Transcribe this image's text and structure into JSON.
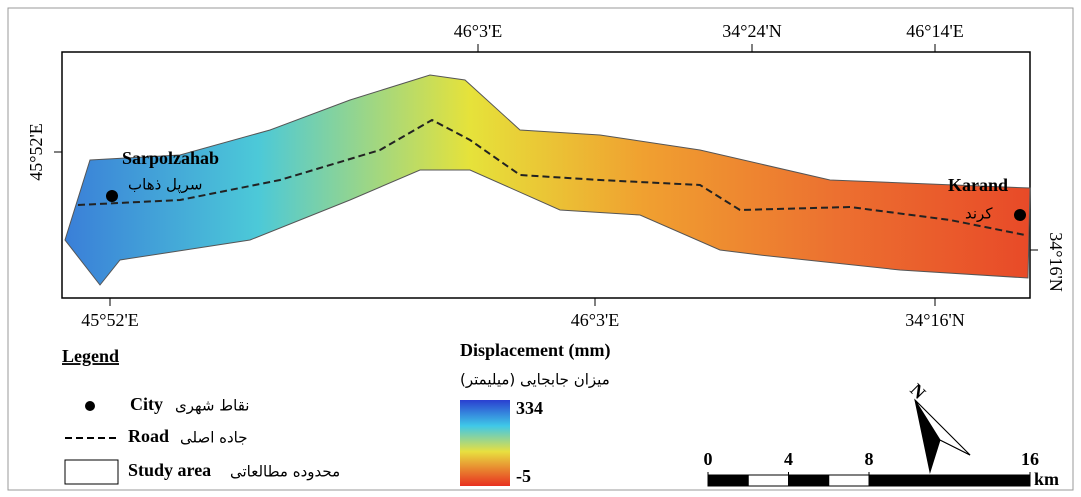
{
  "map": {
    "top_ticks": [
      "46°3'E",
      "34°24'N",
      "46°14'E"
    ],
    "left_ticks": [
      "45°52'E"
    ],
    "right_ticks": [
      "34°16'N"
    ],
    "bottom_ticks": [
      "45°52'E",
      "46°3'E",
      "34°16'N"
    ],
    "cities": [
      {
        "name": "Sarpolzahab",
        "name_fa": "سرپل ذهاب"
      },
      {
        "name": "Karand",
        "name_fa": "کرند"
      }
    ]
  },
  "legend": {
    "title": "Legend",
    "items": [
      {
        "label": "City",
        "label_fa": "نقاط شهری"
      },
      {
        "label": "Road",
        "label_fa": "جاده اصلی"
      },
      {
        "label": "Study area",
        "label_fa": "محدوده مطالعاتی"
      }
    ]
  },
  "colorbar": {
    "title": "Displacement (mm)",
    "title_fa": "میزان جابجایی (میلیمتر)",
    "max": 334,
    "min": -5
  },
  "scale_bar": {
    "ticks": [
      0,
      4,
      8,
      16
    ],
    "unit": "km"
  },
  "north": "N"
}
